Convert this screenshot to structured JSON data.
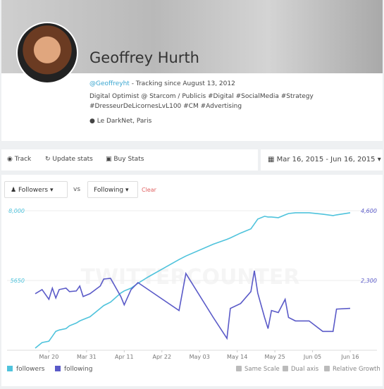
{
  "profile": {
    "name": "Geoffrey Hurth",
    "handle": "@Geoffreyht",
    "tracking": "- Tracking since August 13, 2012",
    "bio": [
      "Digital Optimist @ Starcom / Publicis #Digital #SocialMedia #Strategy",
      "#DresseurDeLicornesLvL100 #CM #Advertising"
    ],
    "location": "Le DarkNet, Paris"
  },
  "toolbar": {
    "buttons": [
      "Track",
      "Update stats",
      "Buy Stats"
    ],
    "date_range": "Mar 16, 2015 - Jun 16, 2015"
  },
  "controls": {
    "metric_a": "Followers",
    "vs": "vs",
    "metric_b": "Following",
    "clear": "Clear"
  },
  "chart_data": {
    "type": "line",
    "watermark": "TWITTERCOUNTER",
    "x": [
      "2015-03-16",
      "2015-03-18",
      "2015-03-20",
      "2015-03-21",
      "2015-03-22",
      "2015-03-23",
      "2015-03-25",
      "2015-03-26",
      "2015-03-28",
      "2015-03-29",
      "2015-03-30",
      "2015-04-01",
      "2015-04-04",
      "2015-04-05",
      "2015-04-07",
      "2015-04-10",
      "2015-04-11",
      "2015-04-13",
      "2015-04-15",
      "2015-04-18",
      "2015-04-27",
      "2015-04-29",
      "2015-05-07",
      "2015-05-11",
      "2015-05-12",
      "2015-05-15",
      "2015-05-18",
      "2015-05-19",
      "2015-05-20",
      "2015-05-22",
      "2015-05-23",
      "2015-05-24",
      "2015-05-26",
      "2015-05-28",
      "2015-05-29",
      "2015-05-31",
      "2015-06-04",
      "2015-06-08",
      "2015-06-11",
      "2015-06-12",
      "2015-06-16"
    ],
    "xlim": [
      "2015-03-16",
      "2015-06-16"
    ],
    "xticks": [
      {
        "value": "2015-03-20",
        "label": "Mar 20"
      },
      {
        "value": "2015-03-31",
        "label": "Mar 31"
      },
      {
        "value": "2015-04-11",
        "label": "Apr 11"
      },
      {
        "value": "2015-04-22",
        "label": "Apr 22"
      },
      {
        "value": "2015-05-03",
        "label": "May 03"
      },
      {
        "value": "2015-05-14",
        "label": "May 14"
      },
      {
        "value": "2015-05-25",
        "label": "May 25"
      },
      {
        "value": "2015-06-05",
        "label": "Jun 05"
      },
      {
        "value": "2015-06-16",
        "label": "Jun 16"
      }
    ],
    "ylim": [
      3300,
      8000
    ],
    "yticks": [
      5650,
      {
        "value": 8000,
        "label": "8,000"
      }
    ],
    "y2lim": [
      0,
      4600
    ],
    "y2ticks": [
      {
        "value": 2300,
        "label": "2,300"
      },
      {
        "value": 4600,
        "label": "4,600"
      }
    ],
    "grid": true,
    "series": [
      {
        "name": "followers",
        "color": "#4fc3dc",
        "values": [
          3371,
          3559,
          3606,
          3770,
          3935,
          3982,
          4029,
          4123,
          4217,
          4287,
          4334,
          4428,
          4710,
          4804,
          4922,
          5227,
          5298,
          5392,
          5556,
          5768,
          6355,
          6473,
          6872,
          7037,
          7084,
          7248,
          7389,
          7554,
          7718,
          7812,
          7789,
          7789,
          7765,
          7859,
          7906,
          7930,
          7930,
          7883,
          7836,
          7859,
          7930
        ]
      },
      {
        "name": "following",
        "color": "#5a5ac8",
        "axis": "y2",
        "values": [
          1863,
          2001,
          1679,
          2047,
          1725,
          2001,
          2047,
          1932,
          1955,
          2116,
          1771,
          1863,
          2116,
          2346,
          2369,
          1771,
          1495,
          2001,
          2231,
          2001,
          1311,
          2530,
          1081,
          391,
          1380,
          1541,
          1932,
          2622,
          1886,
          1081,
          713,
          1311,
          1242,
          1679,
          1081,
          966,
          966,
          621,
          621,
          1357,
          1380
        ]
      }
    ],
    "options": [
      "Same Scale",
      "Dual axis",
      "Relative Growth"
    ]
  }
}
